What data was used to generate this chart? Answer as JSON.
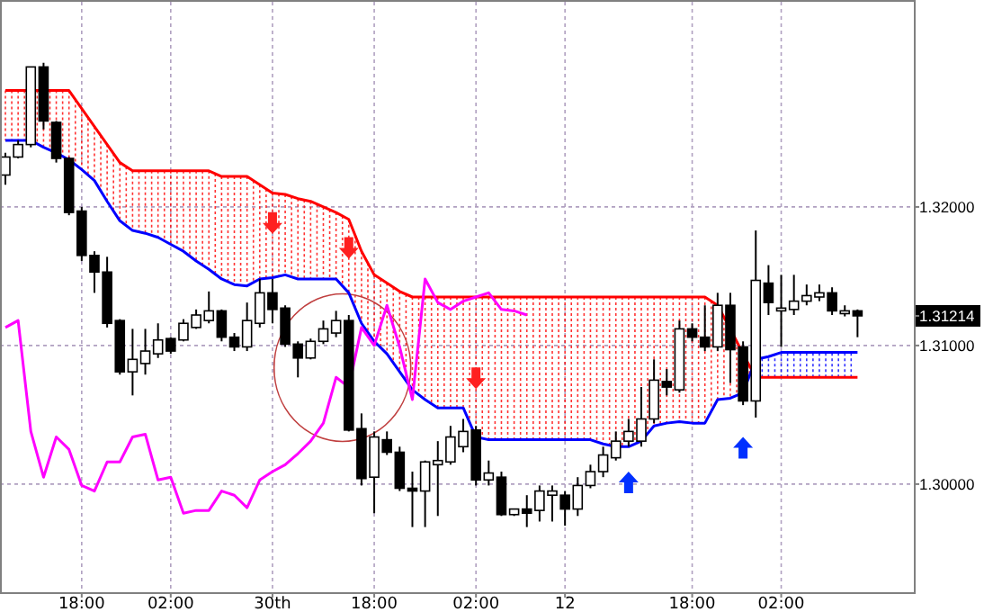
{
  "chart_data": {
    "type": "candlestick",
    "categories": [
      null,
      null,
      null,
      null,
      null,
      null,
      "18:00",
      null,
      null,
      null,
      null,
      null,
      null,
      "02:00",
      null,
      null,
      null,
      null,
      null,
      null,
      null,
      "30th",
      null,
      null,
      null,
      null,
      null,
      null,
      null,
      "18:00",
      null,
      null,
      null,
      null,
      null,
      null,
      null,
      "02:00",
      null,
      null,
      null,
      null,
      null,
      null,
      "12",
      null,
      null,
      null,
      null,
      null,
      null,
      null,
      null,
      null,
      "18:00",
      null,
      null,
      null,
      null,
      null,
      null,
      "02:00",
      null,
      null,
      null,
      null,
      null,
      null
    ],
    "ohlc": [
      [
        1.3223,
        1.3239,
        1.3216,
        1.3236
      ],
      [
        1.3236,
        1.3248,
        1.3235,
        1.3245
      ],
      [
        1.3245,
        1.3301,
        1.3243,
        1.3301
      ],
      [
        1.3301,
        1.3304,
        1.3256,
        1.3262
      ],
      [
        1.3261,
        1.3262,
        1.3232,
        1.3235
      ],
      [
        1.3235,
        1.3236,
        1.3194,
        1.3196
      ],
      [
        1.3197,
        1.32,
        1.3161,
        1.3165
      ],
      [
        1.3165,
        1.3168,
        1.3138,
        1.3153
      ],
      [
        1.3153,
        1.3164,
        1.3113,
        1.3116
      ],
      [
        1.3118,
        1.3119,
        1.3079,
        1.3081
      ],
      [
        1.3081,
        1.3112,
        1.3064,
        1.309
      ],
      [
        1.3087,
        1.3112,
        1.3079,
        1.3096
      ],
      [
        1.3094,
        1.3116,
        1.3091,
        1.3104
      ],
      [
        1.3105,
        1.3106,
        1.3094,
        1.3096
      ],
      [
        1.3104,
        1.3119,
        1.3103,
        1.3116
      ],
      [
        1.3113,
        1.3126,
        1.3112,
        1.3122
      ],
      [
        1.3118,
        1.3139,
        1.3116,
        1.3125
      ],
      [
        1.3125,
        1.3126,
        1.3103,
        1.3106
      ],
      [
        1.3106,
        1.3109,
        1.3096,
        1.3099
      ],
      [
        1.3099,
        1.3131,
        1.3096,
        1.3118
      ],
      [
        1.3116,
        1.3148,
        1.3113,
        1.3138
      ],
      [
        1.3138,
        1.3148,
        1.3116,
        1.3126
      ],
      [
        1.3127,
        1.3129,
        1.3099,
        1.3101
      ],
      [
        1.3101,
        1.3103,
        1.3077,
        1.3091
      ],
      [
        1.3091,
        1.3105,
        1.309,
        1.3103
      ],
      [
        1.3103,
        1.3118,
        1.3101,
        1.3112
      ],
      [
        1.3109,
        1.3125,
        1.3106,
        1.3118
      ],
      [
        1.3118,
        1.3122,
        1.3038,
        1.3039
      ],
      [
        1.304,
        1.3051,
        1.2999,
        1.3004
      ],
      [
        1.3005,
        1.3038,
        1.2979,
        1.3034
      ],
      [
        1.3032,
        1.3038,
        1.3021,
        1.3023
      ],
      [
        1.3023,
        1.3027,
        1.2995,
        1.2997
      ],
      [
        1.2997,
        1.3009,
        1.2969,
        1.2995
      ],
      [
        1.2995,
        1.3017,
        1.2969,
        1.3016
      ],
      [
        1.3014,
        1.3031,
        1.2977,
        1.3017
      ],
      [
        1.3016,
        1.3042,
        1.3014,
        1.3034
      ],
      [
        1.3027,
        1.3047,
        1.3023,
        1.3038
      ],
      [
        1.3039,
        1.3042,
        1.2999,
        1.3003
      ],
      [
        1.3003,
        1.3017,
        1.2999,
        1.3008
      ],
      [
        1.3005,
        1.3009,
        1.2977,
        1.2978
      ],
      [
        1.2978,
        1.2982,
        1.2977,
        1.2982
      ],
      [
        1.2982,
        1.2992,
        1.2969,
        1.2979
      ],
      [
        1.2981,
        1.2999,
        1.2973,
        1.2995
      ],
      [
        1.2992,
        1.2999,
        1.2973,
        1.2995
      ],
      [
        1.2992,
        1.2995,
        1.297,
        1.2982
      ],
      [
        1.2982,
        1.3005,
        1.2977,
        1.2999
      ],
      [
        1.2999,
        1.3014,
        1.2997,
        1.3009
      ],
      [
        1.3009,
        1.3027,
        1.3005,
        1.3021
      ],
      [
        1.3019,
        1.3038,
        1.3017,
        1.3031
      ],
      [
        1.3031,
        1.3047,
        1.3027,
        1.3038
      ],
      [
        1.3031,
        1.307,
        1.3027,
        1.3047
      ],
      [
        1.3047,
        1.309,
        1.3044,
        1.3075
      ],
      [
        1.3074,
        1.3083,
        1.3064,
        1.307
      ],
      [
        1.3068,
        1.3118,
        1.3066,
        1.3112
      ],
      [
        1.3112,
        1.3116,
        1.3103,
        1.3106
      ],
      [
        1.3106,
        1.3129,
        1.3096,
        1.3099
      ],
      [
        1.3099,
        1.3138,
        1.3096,
        1.3129
      ],
      [
        1.3129,
        1.3138,
        1.3073,
        1.3097
      ],
      [
        1.3099,
        1.3103,
        1.3057,
        1.306
      ],
      [
        1.306,
        1.3183,
        1.3048,
        1.3147
      ],
      [
        1.3145,
        1.3158,
        1.3122,
        1.3131
      ],
      [
        1.3125,
        1.3151,
        1.3099,
        1.3127
      ],
      [
        1.3126,
        1.3151,
        1.3122,
        1.3132
      ],
      [
        1.3132,
        1.3144,
        1.3129,
        1.3136
      ],
      [
        1.3135,
        1.3144,
        1.3132,
        1.3138
      ],
      [
        1.3138,
        1.3142,
        1.3122,
        1.3125
      ],
      [
        1.3123,
        1.3129,
        1.3121,
        1.3125
      ],
      [
        1.3125,
        1.3126,
        1.3106,
        1.31214
      ]
    ],
    "series": [
      {
        "type": "line",
        "color": "#ff0000",
        "values": [
          1.3284,
          1.3284,
          1.3284,
          1.3284,
          1.3284,
          1.3284,
          1.3271,
          1.3258,
          1.3245,
          1.3232,
          1.3226,
          1.3226,
          1.3226,
          1.3226,
          1.3226,
          1.3226,
          1.3226,
          1.3222,
          1.3222,
          1.3222,
          1.3216,
          1.321,
          1.3209,
          1.3206,
          1.3204,
          1.32,
          1.3196,
          1.3191,
          1.3168,
          1.3151,
          1.3145,
          1.3139,
          1.3135,
          1.3135,
          1.3135,
          1.3135,
          1.3135,
          1.3135,
          1.3135,
          1.3135,
          1.3135,
          1.3135,
          1.3135,
          1.3135,
          1.3135,
          1.3135,
          1.3135,
          1.3135,
          1.3135,
          1.3135,
          1.3135,
          1.3135,
          1.3135,
          1.3135,
          1.3135,
          1.3135,
          1.3129,
          1.3112,
          1.3094,
          1.3077,
          1.3077,
          1.3077,
          1.3077,
          1.3077,
          1.3077,
          1.3077,
          1.3077,
          1.3077
        ]
      },
      {
        "type": "line",
        "color": "#0000ff",
        "values": [
          1.3248,
          1.3248,
          1.3248,
          1.3243,
          1.3239,
          1.3234,
          1.3227,
          1.3219,
          1.3204,
          1.319,
          1.3183,
          1.3181,
          1.3178,
          1.3173,
          1.3168,
          1.3161,
          1.3155,
          1.3148,
          1.3144,
          1.3143,
          1.3148,
          1.3149,
          1.3151,
          1.3148,
          1.3148,
          1.3148,
          1.3148,
          1.3138,
          1.3116,
          1.3103,
          1.3094,
          1.3081,
          1.3068,
          1.3061,
          1.3055,
          1.3055,
          1.3055,
          1.3034,
          1.3032,
          1.3032,
          1.3032,
          1.3032,
          1.3032,
          1.3032,
          1.3032,
          1.3032,
          1.3032,
          1.3029,
          1.3027,
          1.3027,
          1.3031,
          1.3042,
          1.3044,
          1.3045,
          1.3044,
          1.3044,
          1.3061,
          1.3062,
          1.3066,
          1.309,
          1.3092,
          1.3095,
          1.3095,
          1.3095,
          1.3095,
          1.3095,
          1.3095,
          1.3095
        ]
      },
      {
        "type": "line",
        "color": "#ff00ff",
        "values": [
          1.3113,
          1.3118,
          1.3038,
          1.3005,
          1.3034,
          1.3025,
          1.2999,
          1.2995,
          1.3016,
          1.3016,
          1.3034,
          1.3036,
          1.3003,
          1.3005,
          1.2979,
          1.2981,
          1.2981,
          1.2995,
          1.2992,
          1.2983,
          1.3003,
          1.3009,
          1.3014,
          1.3022,
          1.3031,
          1.3044,
          1.3077,
          1.307,
          1.3113,
          1.31,
          1.3129,
          1.3099,
          1.3061,
          1.3148,
          1.3131,
          1.3126,
          1.3132,
          1.3135,
          1.3138,
          1.3126,
          1.3125,
          1.3122,
          null,
          null,
          null,
          null,
          null,
          null,
          null,
          null,
          null,
          null,
          null,
          null,
          null,
          null,
          null,
          null,
          null,
          null,
          null,
          null,
          null,
          null,
          null,
          null,
          null,
          null
        ]
      }
    ],
    "ylim": [
      1.2922,
      1.3348
    ],
    "yticks": [
      {
        "value": 1.3,
        "label": "1.30000"
      },
      {
        "value": 1.31,
        "label": "1.31000"
      },
      {
        "value": 1.32,
        "label": "1.32000"
      },
      {
        "value": 1.31214,
        "label": "1.31214"
      }
    ],
    "grid": true,
    "marker": "none",
    "line_style": "solid"
  }
}
